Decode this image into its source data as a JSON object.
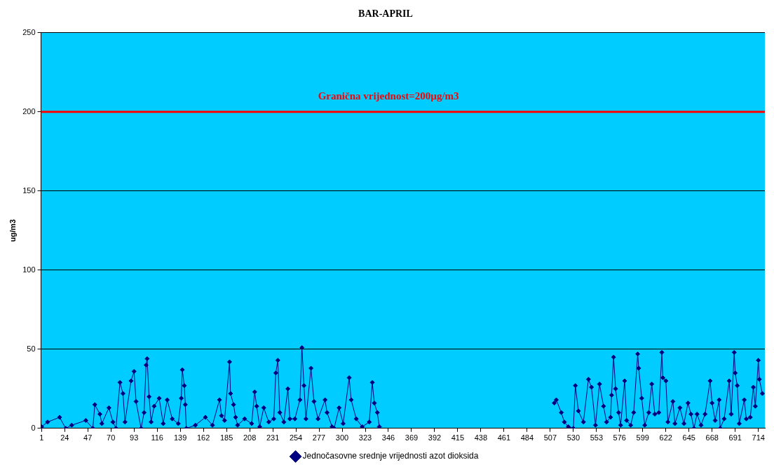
{
  "chart_data": {
    "type": "line",
    "title": "BAR-APRIL",
    "ylabel": "ug/m3",
    "xlim": [
      0.5,
      720.5
    ],
    "xticks": [
      1,
      24,
      47,
      70,
      93,
      116,
      139,
      162,
      185,
      208,
      231,
      254,
      277,
      300,
      323,
      346,
      369,
      392,
      415,
      438,
      461,
      484,
      507,
      530,
      553,
      576,
      599,
      622,
      645,
      668,
      691,
      714
    ],
    "ylim": [
      0,
      250
    ],
    "yticks": [
      0,
      50,
      100,
      150,
      200,
      250
    ],
    "grid": "y",
    "legend": "bottom",
    "marker": "diamond",
    "line_style": "solid",
    "ref_lines": [
      {
        "axis": "y",
        "value": 200,
        "label": "Granična vrijednost=200µg/m3",
        "color": "#ff0000"
      }
    ],
    "series": [
      {
        "name": "Jednočasovne srednje vrijednosti azot dioksida",
        "color": "#000080",
        "x": [
          1,
          7,
          19,
          25,
          31,
          45,
          52,
          54,
          59,
          61,
          68,
          72,
          75,
          79,
          82,
          84,
          90,
          93,
          95,
          100,
          103,
          105,
          106,
          108,
          110,
          113,
          118,
          122,
          126,
          131,
          137,
          140,
          141,
          143,
          144,
          145,
          154,
          164,
          171,
          178,
          180,
          183,
          188,
          189,
          192,
          194,
          196,
          203,
          210,
          213,
          215,
          218,
          222,
          227,
          232,
          234,
          236,
          238,
          242,
          246,
          248,
          253,
          258,
          260,
          262,
          264,
          269,
          272,
          276,
          283,
          285,
          290,
          292,
          297,
          301,
          307,
          309,
          314,
          320,
          327,
          330,
          332,
          335,
          337,
          420,
          511,
          513,
          518,
          521,
          525,
          530,
          532,
          535,
          540,
          545,
          548,
          552,
          556,
          560,
          563,
          567,
          568,
          570,
          572,
          575,
          577,
          581,
          583,
          587,
          590,
          594,
          595,
          598,
          601,
          605,
          608,
          611,
          615,
          618,
          619,
          622,
          624,
          629,
          631,
          636,
          640,
          644,
          647,
          650,
          653,
          657,
          661,
          666,
          668,
          671,
          675,
          676,
          680,
          685,
          687,
          690,
          691,
          693,
          695,
          700,
          702,
          706,
          709,
          711,
          714,
          715,
          718
        ],
        "values": [
          1,
          4,
          7,
          0,
          2,
          5,
          0,
          15,
          9,
          3,
          13,
          4,
          0,
          29,
          22,
          4,
          30,
          36,
          17,
          0,
          10,
          40,
          44,
          20,
          4,
          14,
          19,
          3,
          18,
          6,
          3,
          19,
          37,
          27,
          15,
          0,
          2,
          7,
          2,
          18,
          8,
          5,
          42,
          22,
          15,
          7,
          2,
          6,
          3,
          23,
          14,
          1,
          13,
          4,
          6,
          35,
          43,
          10,
          4,
          25,
          6,
          6,
          18,
          51,
          27,
          6,
          38,
          17,
          6,
          18,
          10,
          1,
          0,
          13,
          3,
          32,
          18,
          6,
          1,
          4,
          29,
          16,
          10,
          1,
          null,
          16,
          18,
          10,
          4,
          1,
          0,
          27,
          11,
          4,
          31,
          26,
          2,
          28,
          14,
          4,
          7,
          21,
          45,
          25,
          10,
          2,
          30,
          5,
          2,
          10,
          47,
          38,
          19,
          2,
          10,
          28,
          9,
          10,
          48,
          32,
          30,
          4,
          17,
          3,
          13,
          3,
          16,
          9,
          0,
          9,
          2,
          9,
          30,
          16,
          5,
          18,
          0,
          6,
          30,
          9,
          48,
          35,
          27,
          3,
          18,
          6,
          7,
          26,
          14,
          43,
          31,
          22
        ]
      }
    ]
  }
}
